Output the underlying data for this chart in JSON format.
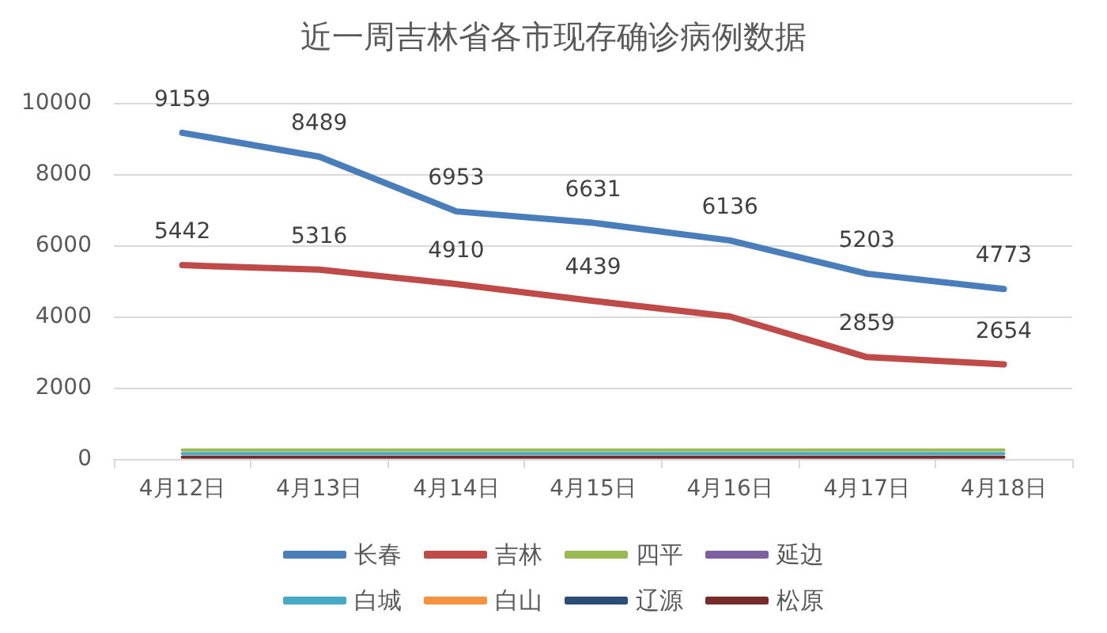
{
  "chart_data": {
    "type": "line",
    "title": "近一周吉林省各市现存确诊病例数据",
    "categories": [
      "4月12日",
      "4月13日",
      "4月14日",
      "4月15日",
      "4月16日",
      "4月17日",
      "4月18日"
    ],
    "series": [
      {
        "name": "长春",
        "color": "#4a7ebb",
        "values": [
          9159,
          8489,
          6953,
          6631,
          6136,
          5203,
          4773
        ],
        "value_labels": [
          "9159",
          "8489",
          "6953",
          "6631",
          "6136",
          "5203",
          "4773"
        ]
      },
      {
        "name": "吉林",
        "color": "#be4b48",
        "values": [
          5442,
          5316,
          4910,
          4439,
          4000,
          2859,
          2654
        ],
        "value_labels": [
          "5442",
          "5316",
          "4910",
          "4439",
          null,
          "2859",
          "2654"
        ]
      },
      {
        "name": "四平",
        "color": "#98b954",
        "values": [
          250,
          250,
          250,
          250,
          250,
          250,
          250
        ]
      },
      {
        "name": "延边",
        "color": "#7d60a0",
        "values": [
          null,
          null,
          null,
          null,
          null,
          null,
          null
        ]
      },
      {
        "name": "白城",
        "color": "#46aac5",
        "values": [
          150,
          150,
          150,
          150,
          150,
          150,
          150
        ]
      },
      {
        "name": "白山",
        "color": "#f69240",
        "values": [
          null,
          null,
          null,
          null,
          null,
          null,
          null
        ]
      },
      {
        "name": "辽源",
        "color": "#2c4d75",
        "values": [
          null,
          null,
          null,
          null,
          null,
          null,
          null
        ]
      },
      {
        "name": "松原",
        "color": "#772c2a",
        "values": [
          50,
          50,
          50,
          50,
          50,
          50,
          50
        ]
      }
    ],
    "ylim": [
      0,
      10000
    ],
    "yticks": [
      0,
      2000,
      4000,
      6000,
      8000,
      10000
    ],
    "grid": "y",
    "legend": "bottom",
    "marker": "none"
  }
}
